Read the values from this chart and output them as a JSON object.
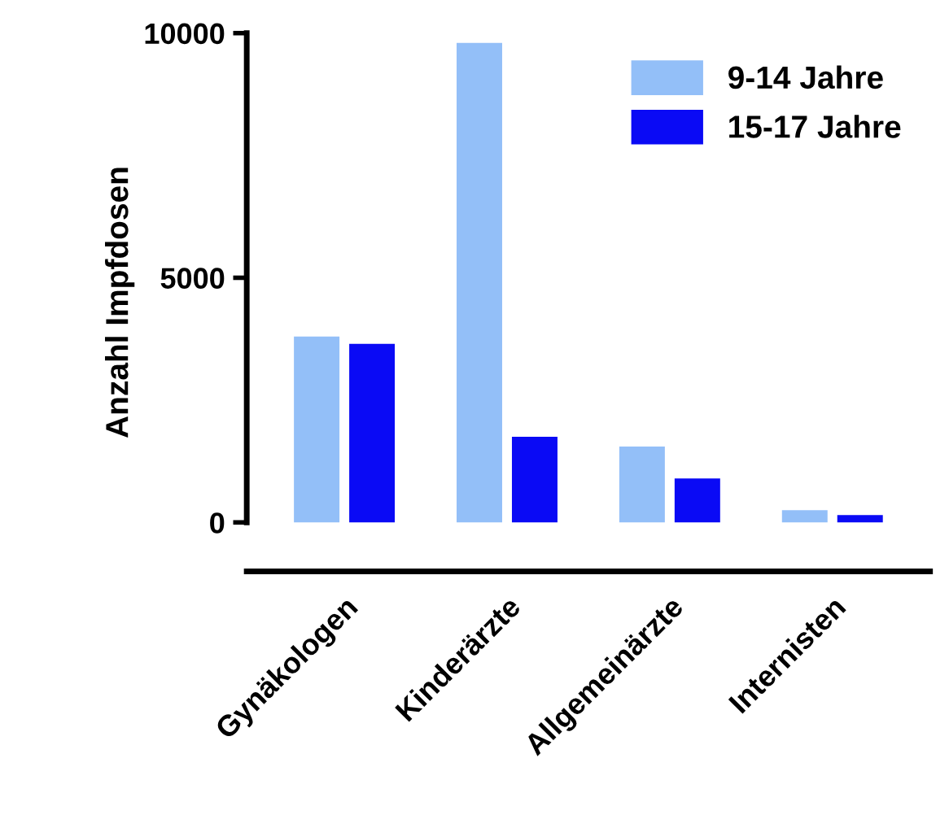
{
  "chart_data": {
    "type": "bar",
    "ylabel": "Anzahl Impfdosen",
    "categories": [
      "Gynäkologen",
      "Kinderärzte",
      "Allgemeinärzte",
      "Internisten"
    ],
    "series": [
      {
        "name": "9-14 Jahre",
        "color": "#93bff8",
        "values": [
          3800,
          9800,
          1550,
          250
        ]
      },
      {
        "name": "15-17 Jahre",
        "color": "#0a0af5",
        "values": [
          3650,
          1750,
          900,
          150
        ]
      }
    ],
    "ylim": [
      -1000,
      10000
    ],
    "yticks": [
      0,
      5000,
      10000
    ],
    "grid": false,
    "legend": "top right"
  }
}
